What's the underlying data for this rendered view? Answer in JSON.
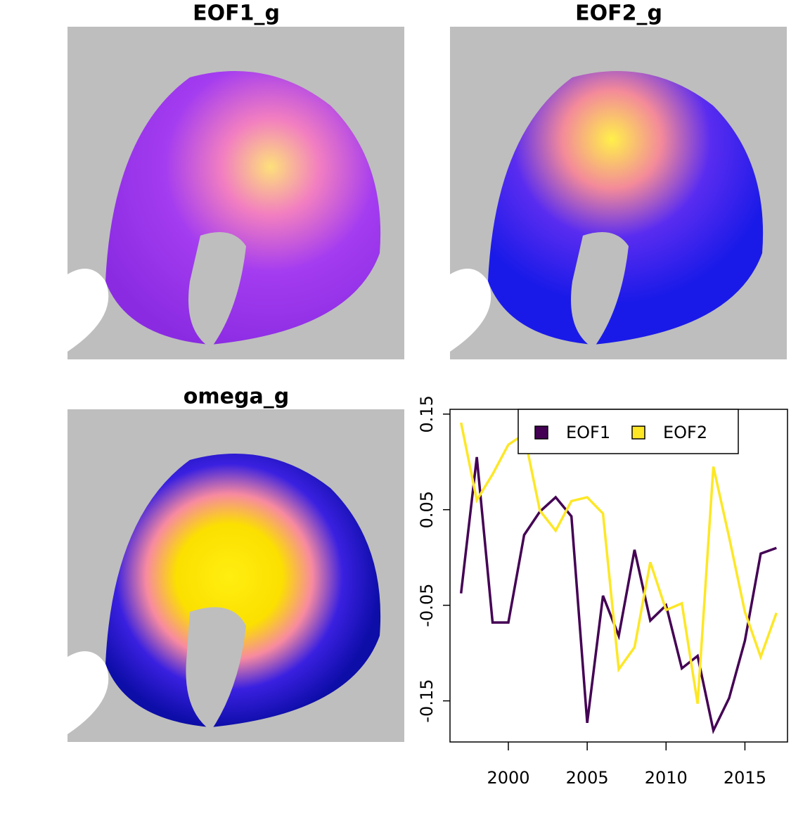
{
  "chart_data": [
    {
      "type": "map",
      "title": "EOF1_g"
    },
    {
      "type": "map",
      "title": "EOF2_g"
    },
    {
      "type": "map",
      "title": "omega_g"
    },
    {
      "type": "line",
      "x": [
        1997,
        1998,
        1999,
        2000,
        2001,
        2002,
        2003,
        2004,
        2005,
        2006,
        2007,
        2008,
        2009,
        2010,
        2011,
        2012,
        2013,
        2014,
        2015,
        2016,
        2017
      ],
      "series": [
        {
          "name": "EOF1",
          "color": "#440154",
          "values": [
            -0.0375,
            0.105,
            -0.068,
            -0.068,
            0.0235,
            0.048,
            0.063,
            0.043,
            -0.173,
            -0.04,
            -0.082,
            0.008,
            -0.066,
            -0.05,
            -0.116,
            -0.103,
            -0.181,
            -0.147,
            -0.087,
            0.004,
            0.01
          ]
        },
        {
          "name": "EOF2",
          "color": "#fde725",
          "values": [
            0.141,
            0.06,
            0.087,
            0.118,
            0.129,
            0.049,
            0.028,
            0.059,
            0.063,
            0.046,
            -0.117,
            -0.094,
            -0.005,
            -0.055,
            -0.048,
            -0.153,
            0.095,
            0.021,
            -0.057,
            -0.104,
            -0.058
          ]
        }
      ],
      "xlim": [
        1996.3,
        2017.7
      ],
      "xticks": [
        2000,
        2005,
        2010,
        2015
      ],
      "ylim": [
        -0.193,
        0.155
      ],
      "yticks": [
        -0.15,
        -0.05,
        0.05,
        0.15
      ],
      "legend": "top"
    }
  ]
}
